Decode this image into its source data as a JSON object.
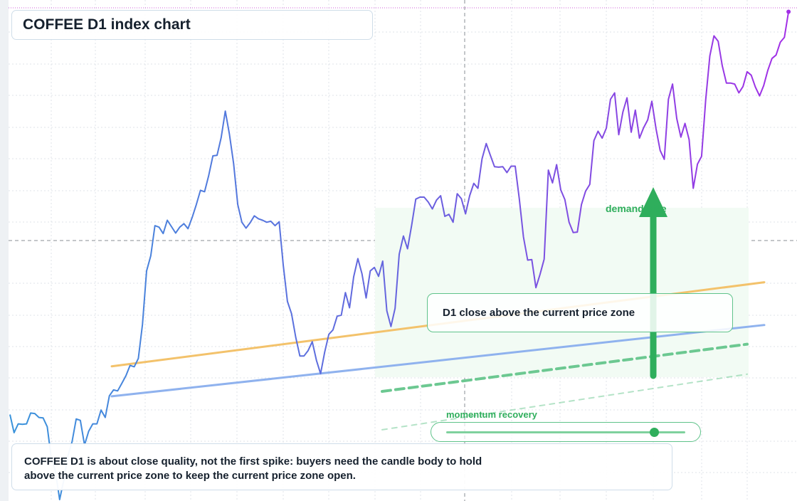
{
  "title": "COFFEE D1 index chart",
  "annotations": {
    "zone_label": "D1 close above the current price zone",
    "demand_label": "demand side",
    "momentum_label": "momentum recovery",
    "momentum_level": 0.87,
    "caption_line1": "COFFEE D1 is about close quality, not the first spike: buyers need the candle body to hold",
    "caption_line2": "above the current price zone to keep the current price zone open."
  },
  "colors": {
    "price_start": "#3a93db",
    "price_mid": "#6b5fdf",
    "price_end": "#a22fe6",
    "orange_line": "#f3c26b",
    "blue_line": "#8fb2ee",
    "green": "#2fae5c",
    "green_dash": "#6cc891",
    "zone_fill": "#f2fbf4",
    "grid": "#dfe3e8",
    "crosshair": "#8a8f96",
    "top_line": "#cf5fd8"
  },
  "chart_data": {
    "type": "line",
    "title": "COFFEE D1 index chart",
    "xlabel": "",
    "ylabel": "",
    "x_range": [
      0,
      183
    ],
    "y_range": [
      0,
      100
    ],
    "grid": true,
    "series": [
      {
        "values": [
          17.3,
          13.6,
          15.4,
          15.3,
          15.4,
          17.6,
          17.5,
          16.7,
          16.6,
          14.8,
          8.3,
          5.7,
          0.0,
          4.0,
          8.9,
          11.8,
          16.4,
          16.1,
          11.1,
          13.9,
          15.4,
          15.4,
          18.2,
          16.7,
          21.1,
          22.3,
          22.1,
          23.6,
          25.2,
          27.3,
          27.0,
          28.7,
          35.6,
          46.5,
          49.6,
          55.7,
          55.4,
          54.1,
          56.8,
          55.5,
          54.2,
          55.4,
          56.1,
          55.1,
          57.4,
          60.0,
          62.9,
          62.6,
          65.9,
          69.9,
          70.0,
          73.6,
          79.0,
          74.3,
          68.3,
          60.0,
          56.4,
          55.2,
          56.3,
          57.7,
          57.1,
          56.8,
          56.4,
          56.6,
          55.7,
          56.5,
          47.6,
          40.3,
          37.8,
          33.0,
          29.2,
          29.2,
          30.3,
          32.1,
          28.3,
          25.6,
          30.0,
          33.6,
          34.5,
          37.3,
          37.5,
          42.1,
          39.0,
          45.3,
          49.0,
          45.9,
          41.0,
          46.5,
          47.2,
          45.4,
          48.5,
          38.4,
          35.2,
          38.9,
          49.9,
          53.6,
          51.0,
          55.8,
          61.1,
          61.5,
          61.5,
          60.5,
          59.1,
          60.9,
          61.8,
          57.6,
          58.0,
          56.4,
          62.2,
          61.2,
          58.1,
          61.8,
          64.3,
          63.3,
          69.3,
          72.4,
          70.0,
          67.7,
          67.6,
          67.7,
          66.5,
          67.8,
          67.8,
          61.1,
          53.4,
          48.7,
          48.8,
          43.1,
          45.8,
          48.9,
          67.0,
          64.4,
          68.1,
          63.0,
          61.0,
          56.4,
          54.3,
          54.4,
          60.0,
          62.7,
          64.1,
          73.0,
          74.9,
          73.5,
          75.5,
          81.4,
          82.7,
          74.2,
          78.8,
          81.7,
          74.7,
          79.2,
          73.5,
          75.6,
          77.2,
          81.0,
          75.4,
          71.0,
          69.2,
          81.4,
          84.5,
          77.5,
          73.7,
          76.5,
          73.2,
          63.3,
          68.2,
          69.8,
          81.3,
          90.2,
          94.3,
          93.2,
          88.2,
          84.7,
          84.7,
          84.5,
          82.7,
          84.0,
          87.0,
          86.3,
          83.9,
          82.1,
          84.2,
          87.3,
          89.7,
          90.4,
          93.0,
          94.0,
          99.2
        ]
      },
      {
        "values": [
          27.1,
          44.2
        ]
      },
      {
        "values": [
          21.0,
          35.5
        ]
      },
      {
        "values": [
          22.0,
          31.6
        ]
      },
      {
        "values": [
          14.2,
          25.5
        ]
      }
    ]
  }
}
